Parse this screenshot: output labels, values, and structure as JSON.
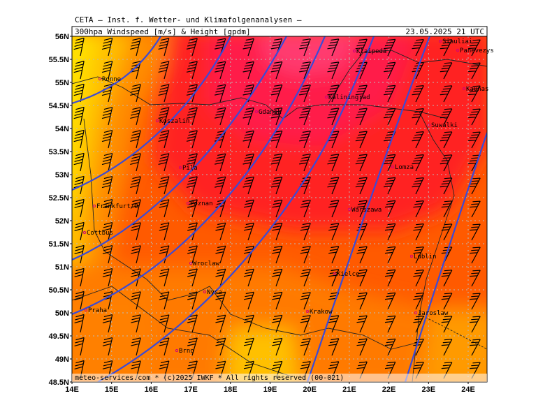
{
  "header": {
    "title": "CETA – Inst. f. Wetter- und Klimafolgenanalysen –",
    "subtitle": "300hpa Windspeed [m/s] & Height [gpdm]",
    "date": "23.05.2025 21 UTC"
  },
  "axes": {
    "lat_labels": [
      "56N",
      "55.5N",
      "55N",
      "54.5N",
      "54N",
      "53.5N",
      "53N",
      "52.5N",
      "52N",
      "51.5N",
      "51N",
      "50.5N",
      "50N",
      "49.5N",
      "49N",
      "48.5N"
    ],
    "lon_labels": [
      "14E",
      "15E",
      "16E",
      "17E",
      "18E",
      "19E",
      "20E",
      "21E",
      "22E",
      "23E",
      "24E"
    ]
  },
  "cities": [
    "Siauliai",
    "Panevezys",
    "Klaipeda",
    "Kaunas",
    "Ronne",
    "Kaliningrad",
    "Gdansk",
    "Koszalin",
    "Suwalki",
    "Lomza",
    "Pila",
    "Poznan",
    "Warszawa",
    "Frankfurt/O",
    "Cottbus",
    "Lublin",
    "Wroclaw",
    "Kielce",
    "Nysa",
    "Praha",
    "Krakow",
    "Jaroslaw",
    "Brno"
  ],
  "footer": "meteo-services.com * (c)2025 IWKF * All rights reserved (00-021)"
}
